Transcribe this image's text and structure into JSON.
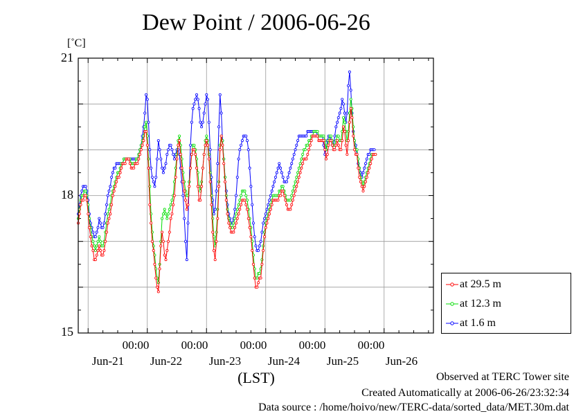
{
  "chart_data": {
    "type": "line",
    "title": "Dew Point / 2006-06-26",
    "unit_label": "[˚C]",
    "xlabel": "(LST)",
    "ylim": [
      15,
      21
    ],
    "ytick_labels": [
      "21",
      "18",
      "15"
    ],
    "yticks": [
      21,
      18,
      15
    ],
    "xlim_hours": [
      0,
      144
    ],
    "x_unit": "hours since 2006-06-20 20:00 LST",
    "xtick_time_label": "00:00",
    "xtick_dates": [
      "Jun-21",
      "Jun-22",
      "Jun-23",
      "Jun-24",
      "Jun-25",
      "Jun-26"
    ],
    "grid": true,
    "legend_position": "bottom-right",
    "series": [
      {
        "name": "at 29.5 m",
        "color": "#ff0000",
        "x_start": 0,
        "x_step": 0.5,
        "values": [
          17.4,
          17.6,
          17.8,
          17.9,
          17.9,
          18.0,
          18.0,
          17.9,
          17.6,
          17.3,
          17.1,
          16.9,
          16.8,
          16.6,
          16.6,
          16.7,
          16.8,
          16.9,
          16.8,
          16.7,
          16.7,
          16.8,
          17.0,
          17.2,
          17.4,
          17.5,
          17.6,
          17.8,
          18.0,
          18.1,
          18.2,
          18.3,
          18.4,
          18.4,
          18.5,
          18.6,
          18.7,
          18.7,
          18.7,
          18.8,
          18.8,
          18.8,
          18.7,
          18.6,
          18.6,
          18.6,
          18.7,
          18.7,
          18.7,
          18.8,
          18.9,
          19.0,
          19.1,
          19.2,
          19.4,
          19.4,
          19.1,
          18.6,
          17.8,
          17.4,
          17.0,
          16.8,
          16.5,
          16.2,
          16.0,
          15.9,
          16.4,
          16.9,
          17.2,
          17.0,
          16.7,
          16.6,
          16.8,
          17.0,
          17.2,
          17.5,
          17.6,
          17.8,
          18.0,
          18.4,
          18.8,
          19.1,
          19.2,
          18.9,
          18.6,
          18.3,
          18.1,
          17.9,
          17.7,
          17.8,
          18.2,
          18.6,
          18.9,
          19.0,
          19.0,
          18.9,
          18.6,
          18.2,
          17.9,
          17.9,
          18.2,
          18.6,
          18.9,
          19.1,
          19.2,
          19.1,
          18.8,
          18.3,
          17.8,
          17.2,
          16.8,
          16.6,
          17.0,
          17.5,
          18.2,
          19.0,
          19.3,
          19.1,
          18.7,
          18.3,
          17.9,
          17.6,
          17.4,
          17.3,
          17.2,
          17.2,
          17.2,
          17.3,
          17.4,
          17.5,
          17.6,
          17.7,
          17.8,
          17.9,
          17.9,
          17.9,
          17.8,
          17.7,
          17.5,
          17.3,
          17.1,
          16.8,
          16.5,
          16.2,
          16.0,
          16.0,
          16.1,
          16.2,
          16.2,
          16.5,
          16.8,
          17.1,
          17.3,
          17.4,
          17.5,
          17.6,
          17.7,
          17.8,
          17.9,
          17.9,
          17.9,
          17.9,
          17.9,
          18.0,
          18.0,
          18.1,
          18.1,
          18.0,
          17.9,
          17.8,
          17.7,
          17.7,
          17.7,
          17.8,
          17.9,
          18.0,
          18.1,
          18.2,
          18.3,
          18.4,
          18.5,
          18.6,
          18.7,
          18.8,
          18.8,
          18.8,
          18.9,
          19.0,
          19.1,
          19.2,
          19.3,
          19.3,
          19.3,
          19.3,
          19.3,
          19.2,
          19.2,
          19.2,
          19.2,
          19.2,
          19.0,
          18.8,
          18.9,
          19.1,
          19.2,
          19.2,
          19.1,
          19.0,
          19.0,
          19.1,
          19.2,
          19.1,
          19.0,
          19.0,
          19.2,
          19.5,
          19.4,
          19.1,
          18.9,
          19.2,
          19.6,
          19.9,
          19.7,
          19.3,
          19.0,
          18.9,
          18.9,
          18.6,
          18.4,
          18.3,
          18.2,
          18.1,
          18.2,
          18.3,
          18.4,
          18.5,
          18.6,
          18.7,
          18.8,
          18.9,
          18.9,
          18.9
        ]
      },
      {
        "name": "at 12.3 m",
        "color": "#00dd00",
        "x_start": 0,
        "x_step": 0.5,
        "values": [
          17.5,
          17.7,
          17.9,
          18.0,
          18.0,
          18.1,
          18.1,
          18.0,
          17.8,
          17.5,
          17.3,
          17.1,
          17.0,
          16.9,
          16.8,
          16.9,
          17.0,
          17.1,
          17.0,
          16.9,
          16.9,
          17.0,
          17.2,
          17.4,
          17.6,
          17.7,
          17.8,
          18.0,
          18.1,
          18.2,
          18.3,
          18.4,
          18.5,
          18.5,
          18.6,
          18.7,
          18.7,
          18.8,
          18.8,
          18.8,
          18.8,
          18.8,
          18.8,
          18.7,
          18.7,
          18.7,
          18.7,
          18.8,
          18.8,
          18.9,
          19.0,
          19.1,
          19.2,
          19.3,
          19.5,
          19.6,
          19.3,
          18.8,
          18.2,
          17.6,
          17.2,
          16.9,
          16.7,
          16.4,
          16.2,
          16.1,
          16.5,
          17.0,
          17.5,
          17.6,
          17.7,
          17.6,
          17.5,
          17.6,
          17.7,
          17.8,
          17.9,
          18.0,
          18.3,
          18.6,
          18.9,
          19.2,
          19.3,
          19.1,
          18.8,
          18.5,
          18.3,
          18.1,
          18.0,
          18.0,
          18.3,
          18.6,
          18.9,
          19.1,
          19.1,
          19.0,
          18.8,
          18.5,
          18.2,
          18.1,
          18.3,
          18.6,
          18.9,
          19.2,
          19.3,
          19.2,
          18.9,
          18.5,
          18.0,
          17.5,
          17.1,
          16.9,
          17.2,
          17.7,
          18.3,
          19.1,
          19.3,
          19.2,
          18.8,
          18.4,
          18.0,
          17.7,
          17.5,
          17.4,
          17.3,
          17.3,
          17.4,
          17.5,
          17.6,
          17.7,
          17.8,
          17.9,
          18.0,
          18.1,
          18.1,
          18.1,
          18.0,
          17.9,
          17.7,
          17.5,
          17.3,
          17.0,
          16.7,
          16.4,
          16.2,
          16.2,
          16.3,
          16.3,
          16.4,
          16.6,
          16.9,
          17.2,
          17.4,
          17.5,
          17.6,
          17.7,
          17.8,
          17.9,
          18.0,
          18.0,
          18.0,
          18.0,
          18.0,
          18.1,
          18.1,
          18.2,
          18.2,
          18.1,
          18.0,
          17.9,
          17.9,
          17.9,
          17.9,
          18.0,
          18.1,
          18.2,
          18.3,
          18.4,
          18.5,
          18.6,
          18.7,
          18.8,
          18.9,
          19.0,
          19.0,
          19.1,
          19.1,
          19.2,
          19.2,
          19.3,
          19.3,
          19.4,
          19.4,
          19.4,
          19.4,
          19.3,
          19.3,
          19.3,
          19.3,
          19.3,
          19.2,
          19.0,
          19.1,
          19.2,
          19.3,
          19.3,
          19.2,
          19.1,
          19.1,
          19.2,
          19.3,
          19.3,
          19.2,
          19.2,
          19.4,
          19.7,
          19.6,
          19.4,
          19.2,
          19.4,
          19.8,
          20.1,
          19.9,
          19.5,
          19.2,
          19.0,
          19.0,
          18.8,
          18.6,
          18.4,
          18.3,
          18.2,
          18.3,
          18.4,
          18.5,
          18.6,
          18.7,
          18.8,
          18.9,
          18.9,
          18.9,
          18.9
        ]
      },
      {
        "name": "at 1.6 m",
        "color": "#0000ff",
        "x_start": 0,
        "x_step": 0.5,
        "values": [
          17.6,
          17.8,
          18.0,
          18.1,
          18.2,
          18.2,
          18.2,
          18.1,
          17.9,
          17.6,
          17.4,
          17.3,
          17.2,
          17.1,
          17.1,
          17.2,
          17.3,
          17.5,
          17.4,
          17.3,
          17.3,
          17.4,
          17.6,
          17.8,
          18.0,
          18.1,
          18.2,
          18.4,
          18.5,
          18.6,
          18.6,
          18.7,
          18.7,
          18.7,
          18.7,
          18.7,
          18.7,
          18.8,
          18.8,
          18.8,
          18.8,
          18.8,
          18.8,
          18.8,
          18.8,
          18.8,
          18.8,
          18.8,
          18.8,
          18.9,
          19.0,
          19.1,
          19.3,
          19.5,
          19.8,
          20.2,
          20.1,
          19.6,
          19.0,
          18.6,
          18.4,
          18.3,
          18.2,
          18.4,
          18.8,
          19.2,
          19.0,
          18.8,
          18.6,
          18.5,
          18.6,
          18.7,
          18.9,
          19.0,
          19.1,
          19.1,
          19.0,
          18.9,
          18.8,
          18.9,
          19.0,
          19.0,
          18.9,
          18.6,
          18.3,
          18.0,
          17.5,
          17.0,
          16.6,
          17.4,
          18.3,
          19.1,
          19.6,
          19.9,
          20.0,
          20.1,
          20.2,
          20.1,
          19.9,
          19.6,
          19.5,
          19.6,
          19.8,
          20.0,
          20.2,
          20.1,
          19.6,
          19.0,
          18.4,
          17.9,
          17.6,
          17.7,
          18.1,
          18.7,
          19.5,
          20.2,
          19.8,
          19.2,
          18.8,
          18.4,
          18.1,
          17.8,
          17.6,
          17.5,
          17.4,
          17.4,
          17.5,
          17.7,
          18.0,
          18.4,
          18.8,
          19.0,
          19.1,
          19.2,
          19.3,
          19.3,
          19.3,
          19.2,
          19.0,
          18.6,
          18.2,
          17.8,
          17.4,
          17.1,
          16.9,
          16.8,
          16.8,
          16.9,
          17.0,
          17.2,
          17.4,
          17.5,
          17.6,
          17.7,
          17.8,
          17.9,
          18.0,
          18.1,
          18.2,
          18.3,
          18.4,
          18.5,
          18.6,
          18.7,
          18.6,
          18.5,
          18.4,
          18.3,
          18.3,
          18.3,
          18.4,
          18.5,
          18.6,
          18.7,
          18.8,
          18.9,
          19.0,
          19.1,
          19.2,
          19.3,
          19.3,
          19.3,
          19.3,
          19.3,
          19.3,
          19.3,
          19.4,
          19.4,
          19.4,
          19.4,
          19.4,
          19.4,
          19.4,
          19.4,
          19.3,
          19.3,
          19.3,
          19.3,
          19.3,
          19.1,
          18.9,
          19.0,
          19.2,
          19.3,
          19.3,
          19.2,
          19.1,
          19.1,
          19.3,
          19.5,
          19.6,
          19.7,
          19.8,
          19.9,
          20.1,
          20.0,
          19.8,
          19.6,
          19.8,
          20.4,
          20.7,
          20.3,
          19.8,
          19.4,
          19.2,
          19.1,
          18.9,
          18.7,
          18.6,
          18.5,
          18.4,
          18.5,
          18.6,
          18.7,
          18.8,
          18.9,
          18.9,
          19.0,
          19.0,
          19.0,
          19.0
        ]
      }
    ]
  },
  "footer": {
    "observed": "Observed at TERC Tower site",
    "created": "Created Automatically at 2006-06-26/23:32:34",
    "source": "Data source : /home/hoivo/new/TERC-data/sorted_data/MET.30m.dat"
  }
}
